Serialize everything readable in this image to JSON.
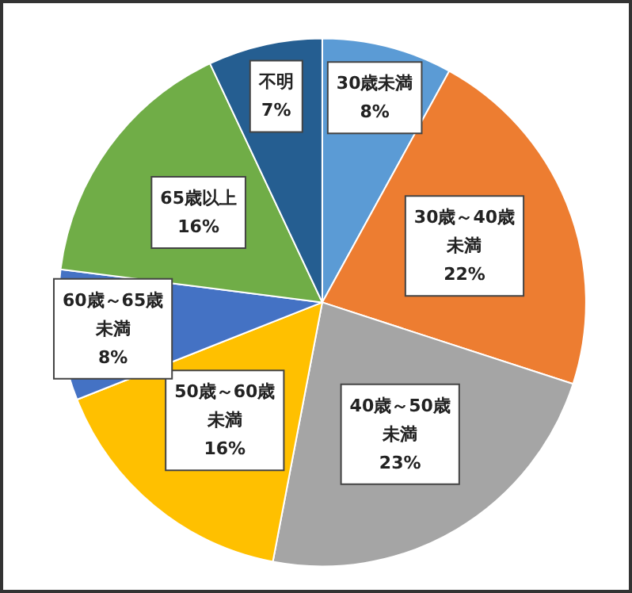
{
  "chart_data": {
    "type": "pie",
    "categories": [
      "30歳未満",
      "30歳～40歳未満",
      "40歳～50歳未満",
      "50歳～60歳未満",
      "60歳～65歳未満",
      "65歳以上",
      "不明"
    ],
    "values": [
      8,
      22,
      23,
      16,
      8,
      16,
      7
    ],
    "colors": [
      "#5b9bd5",
      "#ed7d31",
      "#a5a5a5",
      "#ffc000",
      "#4472c4",
      "#70ad47",
      "#255e91"
    ],
    "value_labels": [
      "8%",
      "22%",
      "23%",
      "16%",
      "8%",
      "16%",
      "7%"
    ],
    "legend": false
  }
}
